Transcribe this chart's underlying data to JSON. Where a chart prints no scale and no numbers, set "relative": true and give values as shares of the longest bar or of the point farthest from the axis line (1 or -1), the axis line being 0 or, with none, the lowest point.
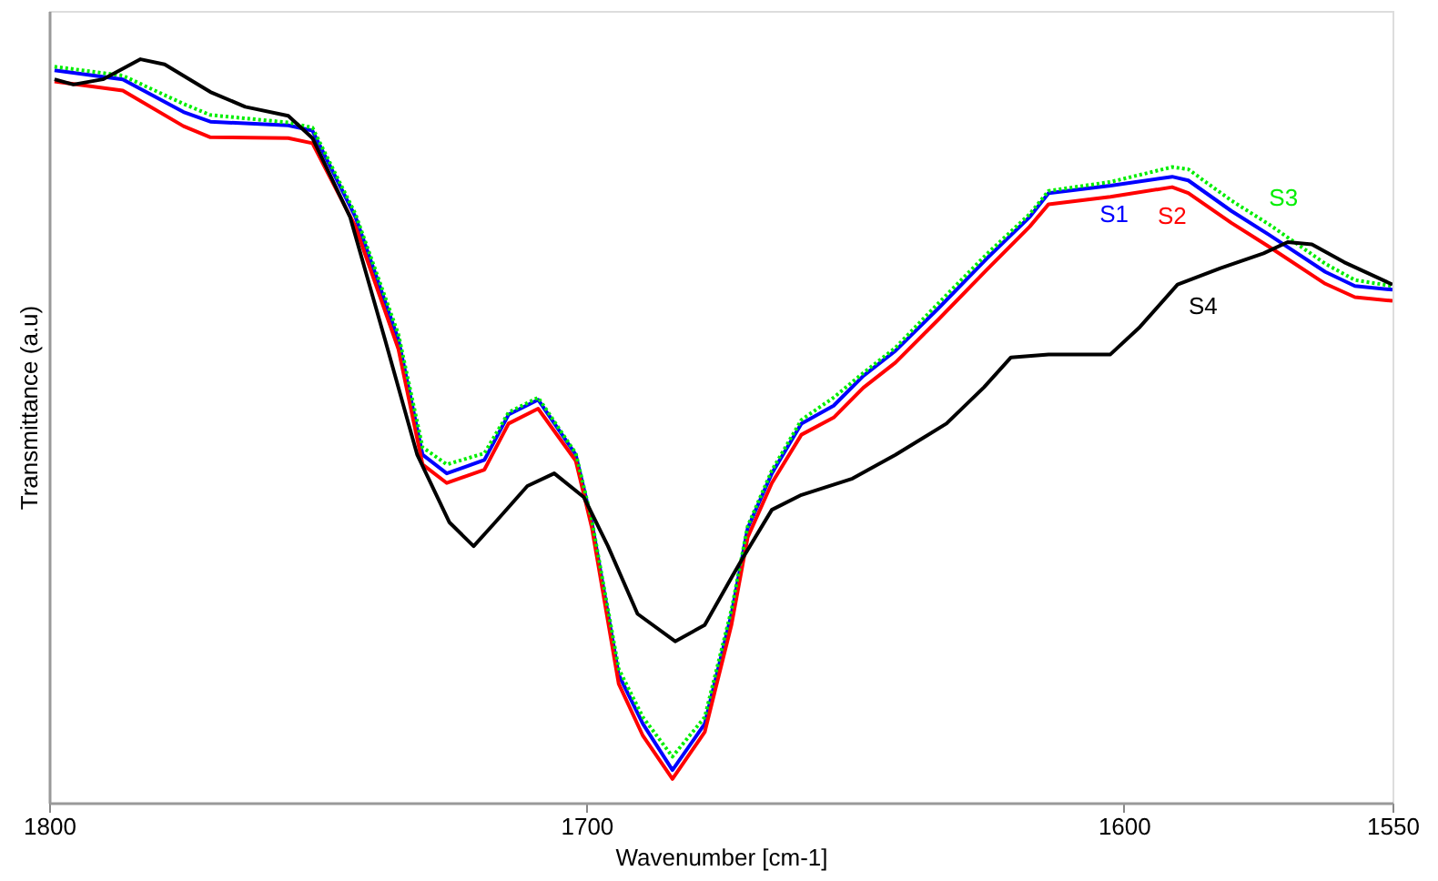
{
  "chart_data": {
    "type": "line",
    "relative": true,
    "xlabel": "Wavenumber [cm-1]",
    "ylabel": "Transmittance (a.u)",
    "xlim": [
      1800,
      1550
    ],
    "xticks": [
      1800,
      1700,
      1600,
      1550
    ],
    "tick_labels": "x",
    "grid": false,
    "legend": false,
    "series": [
      {
        "name": "S1",
        "color": "#0000ff",
        "line_style": "solid",
        "x": [
          1799,
          1786.3,
          1775,
          1770,
          1755.5,
          1751,
          1743,
          1735,
          1730.5,
          1726,
          1719,
          1714.5,
          1709,
          1702,
          1699,
          1694,
          1689.5,
          1684,
          1678,
          1673,
          1670,
          1665.5,
          1660,
          1654,
          1648.5,
          1642.5,
          1634.5,
          1625.5,
          1617.5,
          1614,
          1602.5,
          1591,
          1588,
          1580,
          1573,
          1562.5,
          1557,
          1550
        ],
        "values": [
          0.985,
          0.973,
          0.929,
          0.916,
          0.911,
          0.904,
          0.788,
          0.623,
          0.468,
          0.443,
          0.461,
          0.522,
          0.542,
          0.468,
          0.377,
          0.172,
          0.106,
          0.044,
          0.106,
          0.254,
          0.369,
          0.443,
          0.51,
          0.534,
          0.574,
          0.608,
          0.665,
          0.732,
          0.788,
          0.82,
          0.83,
          0.842,
          0.837,
          0.796,
          0.764,
          0.714,
          0.695,
          0.69
        ]
      },
      {
        "name": "S2",
        "color": "#ff0000",
        "line_style": "solid",
        "x": [
          1799,
          1786.3,
          1775,
          1770,
          1755.5,
          1751,
          1743,
          1735,
          1730.5,
          1726,
          1719,
          1714.5,
          1709,
          1702,
          1699,
          1694,
          1689.5,
          1684,
          1678,
          1673,
          1670,
          1665.5,
          1660,
          1654,
          1648.5,
          1642.5,
          1634.5,
          1625.5,
          1617.5,
          1614,
          1602.5,
          1591,
          1588,
          1580,
          1573,
          1562.5,
          1557,
          1550
        ],
        "values": [
          0.97,
          0.958,
          0.91,
          0.895,
          0.894,
          0.887,
          0.775,
          0.61,
          0.455,
          0.43,
          0.448,
          0.51,
          0.53,
          0.46,
          0.37,
          0.16,
          0.09,
          0.032,
          0.095,
          0.24,
          0.357,
          0.43,
          0.495,
          0.518,
          0.558,
          0.592,
          0.65,
          0.717,
          0.775,
          0.805,
          0.815,
          0.828,
          0.82,
          0.78,
          0.748,
          0.698,
          0.68,
          0.675
        ]
      },
      {
        "name": "S3",
        "color": "#00ee00",
        "line_style": "dotted",
        "x": [
          1799,
          1786.3,
          1775,
          1770,
          1755.5,
          1751,
          1743,
          1735,
          1730.5,
          1726,
          1719,
          1714.5,
          1709,
          1702,
          1699,
          1694,
          1689.5,
          1684,
          1678,
          1673,
          1670,
          1665.5,
          1660,
          1654,
          1648.5,
          1642.5,
          1634.5,
          1625.5,
          1617.5,
          1614,
          1602.5,
          1591,
          1588,
          1580,
          1573,
          1562.5,
          1557,
          1550
        ],
        "values": [
          0.99,
          0.978,
          0.94,
          0.925,
          0.915,
          0.908,
          0.792,
          0.63,
          0.478,
          0.455,
          0.47,
          0.525,
          0.545,
          0.47,
          0.38,
          0.18,
          0.115,
          0.062,
          0.115,
          0.26,
          0.372,
          0.447,
          0.515,
          0.545,
          0.578,
          0.612,
          0.672,
          0.738,
          0.792,
          0.823,
          0.835,
          0.855,
          0.852,
          0.81,
          0.778,
          0.725,
          0.703,
          0.695
        ]
      },
      {
        "name": "S4",
        "color": "#000000",
        "line_style": "solid",
        "x": [
          1799,
          1795.5,
          1790,
          1783,
          1778.5,
          1770,
          1763.5,
          1755.5,
          1751,
          1744,
          1737.5,
          1731.5,
          1725.5,
          1721,
          1717,
          1711,
          1706,
          1700.5,
          1696,
          1690.5,
          1683.5,
          1678,
          1673,
          1671,
          1665.5,
          1660,
          1650.5,
          1642.5,
          1633,
          1626,
          1621,
          1614,
          1602.5,
          1597,
          1590,
          1582,
          1574,
          1569.5,
          1565,
          1559,
          1550
        ],
        "values": [
          0.973,
          0.966,
          0.973,
          1,
          0.993,
          0.956,
          0.936,
          0.924,
          0.894,
          0.788,
          0.623,
          0.468,
          0.377,
          0.345,
          0.377,
          0.426,
          0.443,
          0.411,
          0.345,
          0.254,
          0.217,
          0.239,
          0.303,
          0.328,
          0.394,
          0.414,
          0.436,
          0.468,
          0.51,
          0.559,
          0.599,
          0.603,
          0.603,
          0.64,
          0.697,
          0.719,
          0.739,
          0.754,
          0.751,
          0.727,
          0.697
        ]
      }
    ]
  }
}
